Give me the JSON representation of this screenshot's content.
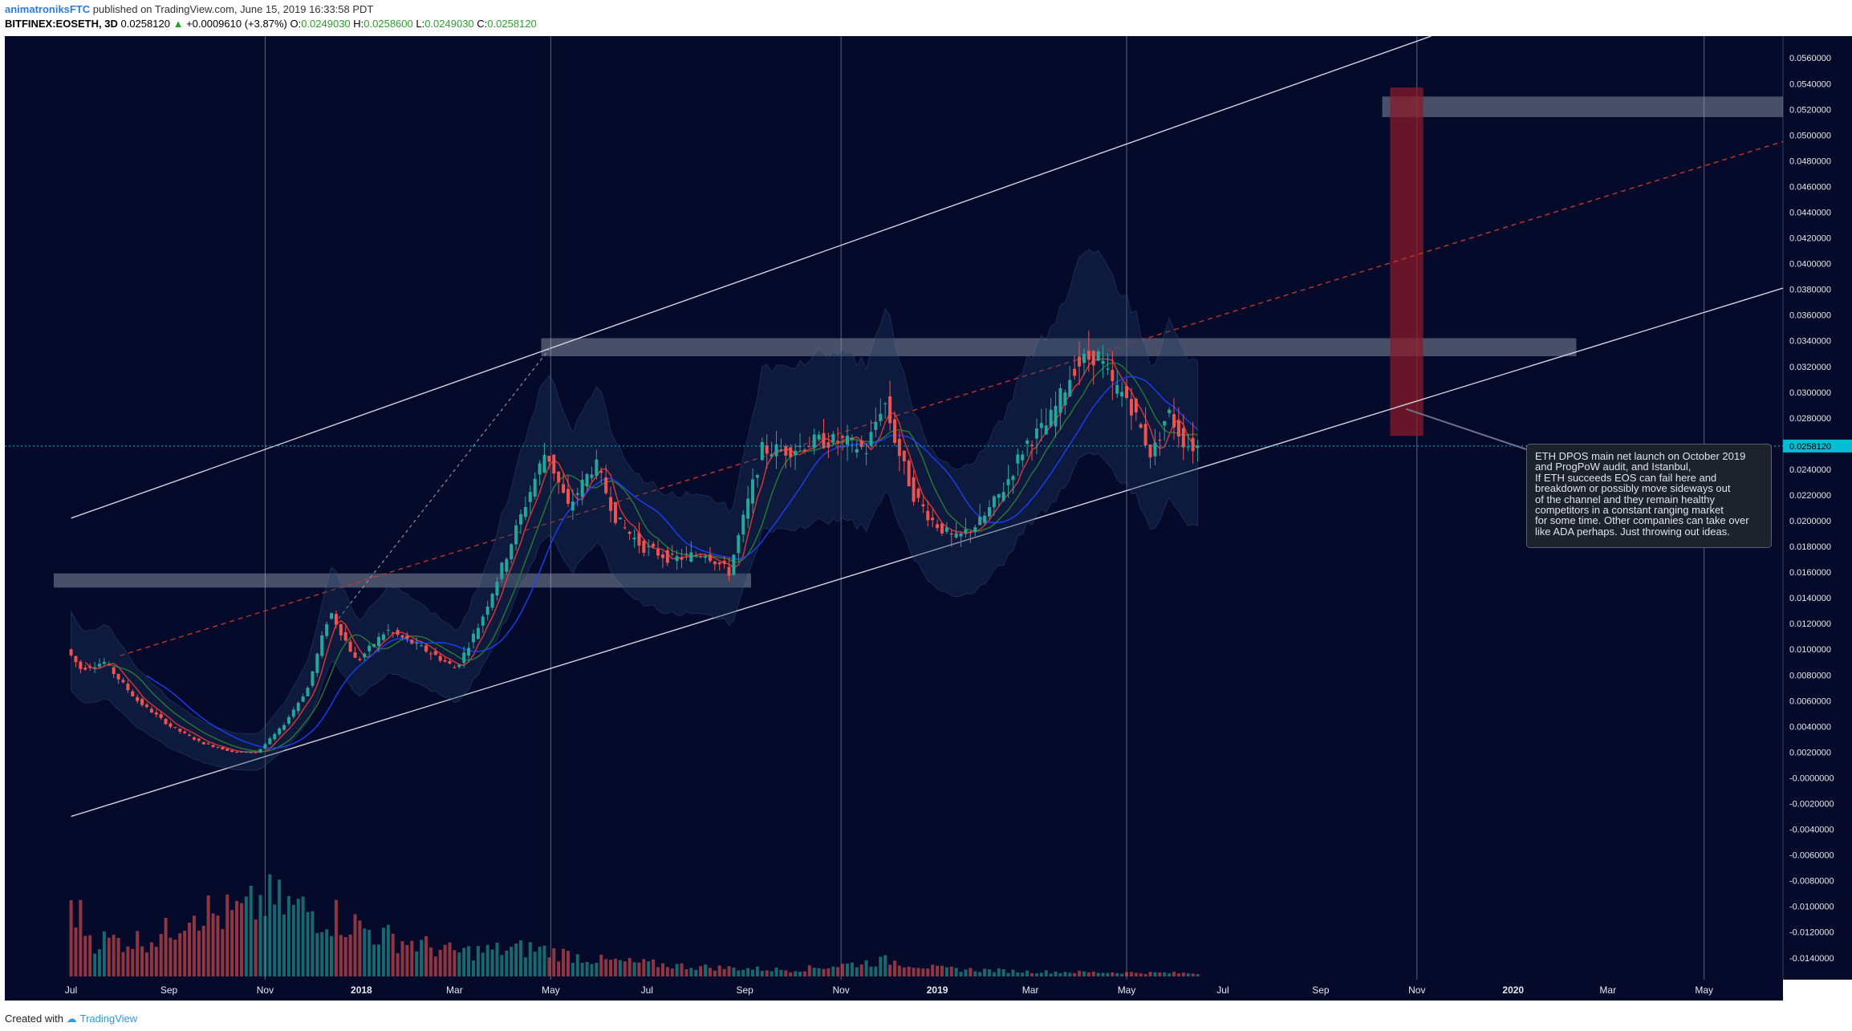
{
  "header": {
    "user": "animatroniksFTC",
    "published": " published on TradingView.com, June 15, 2019 16:33:58 PDT",
    "symbol": "BITFINEX:EOSETH, 3D",
    "last": "0.0258120",
    "change": "+0.0009610 (+3.87%)",
    "o_label": "O:",
    "o": "0.0249030",
    "h_label": "H:",
    "h": "0.0258600",
    "l_label": "L:",
    "l": "0.0249030",
    "c_label": "C:",
    "c": "0.0258120"
  },
  "footer": {
    "created": "Created with",
    "brand": "TradingView"
  },
  "note": {
    "text": "ETH DPOS main net launch on October 2019\nand ProgPoW audit, and Istanbul,\nIf ETH succeeds EOS can fail here and\nbreakdown or possibly move sideways out\nof the channel and they remain healthy\ncompetitors in a constant ranging market\nfor some time. Other companies can take over\nlike ADA perhaps. Just throwing out ideas."
  },
  "colors": {
    "background": "#050a2b",
    "up_candle": "#26a69a",
    "down_candle": "#ef5350",
    "price_tag": "#00bcd4",
    "channel": "#d0d4dc",
    "zone": "#9ba3b5",
    "projection": "#8b1a2a"
  },
  "chart_data": {
    "type": "candlestick",
    "symbol": "BITFINEX:EOSETH",
    "interval": "3D",
    "last_price": 0.025812,
    "last_price_label": "0.0258120",
    "x_tick_labels": [
      "Jul",
      "Sep",
      "Nov",
      "2018",
      "Mar",
      "May",
      "Jul",
      "Sep",
      "Nov",
      "2019",
      "Mar",
      "May",
      "Jul",
      "Sep",
      "Nov",
      "2020",
      "Mar",
      "May"
    ],
    "x_ticks": [
      "2017-07-01",
      "2017-09-01",
      "2017-11-01",
      "2018-01-01",
      "2018-03-01",
      "2018-05-01",
      "2018-07-01",
      "2018-09-01",
      "2018-11-01",
      "2019-01-01",
      "2019-03-01",
      "2019-05-01",
      "2019-07-01",
      "2019-09-01",
      "2019-11-01",
      "2020-01-01",
      "2020-03-01",
      "2020-05-01"
    ],
    "y_tick_labels": [
      "0.0560000",
      "0.0540000",
      "0.0520000",
      "0.0500000",
      "0.0480000",
      "0.0460000",
      "0.0440000",
      "0.0420000",
      "0.0400000",
      "0.0380000",
      "0.0360000",
      "0.0340000",
      "0.0320000",
      "0.0300000",
      "0.0280000",
      "0.0260000",
      "0.0240000",
      "0.0220000",
      "0.0200000",
      "0.0180000",
      "0.0160000",
      "0.0140000",
      "0.0120000",
      "0.0100000",
      "0.0080000",
      "0.0060000",
      "0.0040000",
      "0.0020000",
      "-0.0000000",
      "-0.0020000",
      "-0.0040000",
      "-0.0060000",
      "-0.0080000",
      "-0.0100000",
      "-0.0120000",
      "-0.0140000"
    ],
    "ylim": [
      -0.0157,
      0.0577
    ],
    "xlim": [
      "2017-05-20",
      "2020-06-20"
    ],
    "price_path": [
      [
        "2017-07-01",
        0.01
      ],
      [
        "2017-07-10",
        0.0085
      ],
      [
        "2017-07-25",
        0.009
      ],
      [
        "2017-08-15",
        0.006
      ],
      [
        "2017-09-05",
        0.004
      ],
      [
        "2017-09-25",
        0.0027
      ],
      [
        "2017-10-15",
        0.002
      ],
      [
        "2017-10-30",
        0.002
      ],
      [
        "2017-11-15",
        0.004
      ],
      [
        "2017-12-01",
        0.007
      ],
      [
        "2017-12-15",
        0.013
      ],
      [
        "2018-01-01",
        0.009
      ],
      [
        "2018-01-20",
        0.0115
      ],
      [
        "2018-02-05",
        0.0105
      ],
      [
        "2018-02-20",
        0.0095
      ],
      [
        "2018-03-05",
        0.0085
      ],
      [
        "2018-03-20",
        0.012
      ],
      [
        "2018-04-05",
        0.017
      ],
      [
        "2018-04-20",
        0.022
      ],
      [
        "2018-05-01",
        0.0255
      ],
      [
        "2018-05-15",
        0.021
      ],
      [
        "2018-06-01",
        0.0245
      ],
      [
        "2018-06-15",
        0.02
      ],
      [
        "2018-07-01",
        0.018
      ],
      [
        "2018-07-20",
        0.017
      ],
      [
        "2018-08-10",
        0.0175
      ],
      [
        "2018-08-25",
        0.016
      ],
      [
        "2018-09-05",
        0.021
      ],
      [
        "2018-09-15",
        0.0255
      ],
      [
        "2018-10-01",
        0.0255
      ],
      [
        "2018-10-20",
        0.0262
      ],
      [
        "2018-11-05",
        0.0262
      ],
      [
        "2018-11-20",
        0.0255
      ],
      [
        "2018-12-01",
        0.0295
      ],
      [
        "2018-12-10",
        0.0255
      ],
      [
        "2018-12-20",
        0.022
      ],
      [
        "2019-01-01",
        0.02
      ],
      [
        "2019-01-15",
        0.0185
      ],
      [
        "2019-02-01",
        0.02
      ],
      [
        "2019-02-15",
        0.0225
      ],
      [
        "2019-03-01",
        0.026
      ],
      [
        "2019-03-15",
        0.0275
      ],
      [
        "2019-04-01",
        0.032
      ],
      [
        "2019-04-15",
        0.033
      ],
      [
        "2019-04-25",
        0.0305
      ],
      [
        "2019-05-05",
        0.0295
      ],
      [
        "2019-05-20",
        0.025
      ],
      [
        "2019-05-30",
        0.0285
      ],
      [
        "2019-06-10",
        0.026
      ],
      [
        "2019-06-15",
        0.0258
      ]
    ],
    "volume_path": [
      [
        "2017-07-01",
        0.95
      ],
      [
        "2017-07-15",
        0.45
      ],
      [
        "2017-08-15",
        0.45
      ],
      [
        "2017-09-01",
        0.55
      ],
      [
        "2017-09-15",
        0.9
      ],
      [
        "2017-10-01",
        0.75
      ],
      [
        "2017-10-20",
        0.8
      ],
      [
        "2017-11-01",
        0.95
      ],
      [
        "2017-11-20",
        0.85
      ],
      [
        "2017-12-15",
        0.75
      ],
      [
        "2018-01-15",
        0.5
      ],
      [
        "2018-03-01",
        0.3
      ],
      [
        "2018-04-20",
        0.35
      ],
      [
        "2018-06-01",
        0.2
      ],
      [
        "2018-08-01",
        0.12
      ],
      [
        "2018-10-01",
        0.08
      ],
      [
        "2018-12-01",
        0.2
      ],
      [
        "2019-01-01",
        0.1
      ],
      [
        "2019-03-01",
        0.06
      ],
      [
        "2019-06-15",
        0.04
      ]
    ],
    "trendlines": {
      "channel_upper": [
        [
          "2017-07-01",
          0.0202
        ],
        [
          "2019-11-10",
          0.0577
        ]
      ],
      "channel_lower": [
        [
          "2017-07-01",
          -0.003
        ],
        [
          "2020-06-20",
          0.0381
        ]
      ],
      "midline_dashed": [
        [
          "2017-08-01",
          0.0095
        ],
        [
          "2020-06-20",
          0.0495
        ]
      ],
      "median_ray_dashed": [
        [
          "2017-12-15",
          0.012
        ],
        [
          "2018-05-01",
          0.0335
        ]
      ]
    },
    "zones": [
      {
        "name": "resistance",
        "from": "2018-04-25",
        "to": "2020-02-10",
        "y_low": 0.0328,
        "y_high": 0.0342
      },
      {
        "name": "support",
        "from": "2017-06-20",
        "to": "2018-09-05",
        "y_low": 0.0148,
        "y_high": 0.0159
      },
      {
        "name": "target",
        "from": "2019-10-10",
        "to": "2020-06-20",
        "y_low": 0.0514,
        "y_high": 0.053
      },
      {
        "name": "projection",
        "from": "2019-10-15",
        "to": "2019-11-05",
        "y_low": 0.0266,
        "y_high": 0.0537
      }
    ],
    "vertical_lines": [
      "2017-11-01",
      "2018-05-01",
      "2018-11-01",
      "2019-05-01",
      "2019-11-01",
      "2020-05-01"
    ]
  }
}
